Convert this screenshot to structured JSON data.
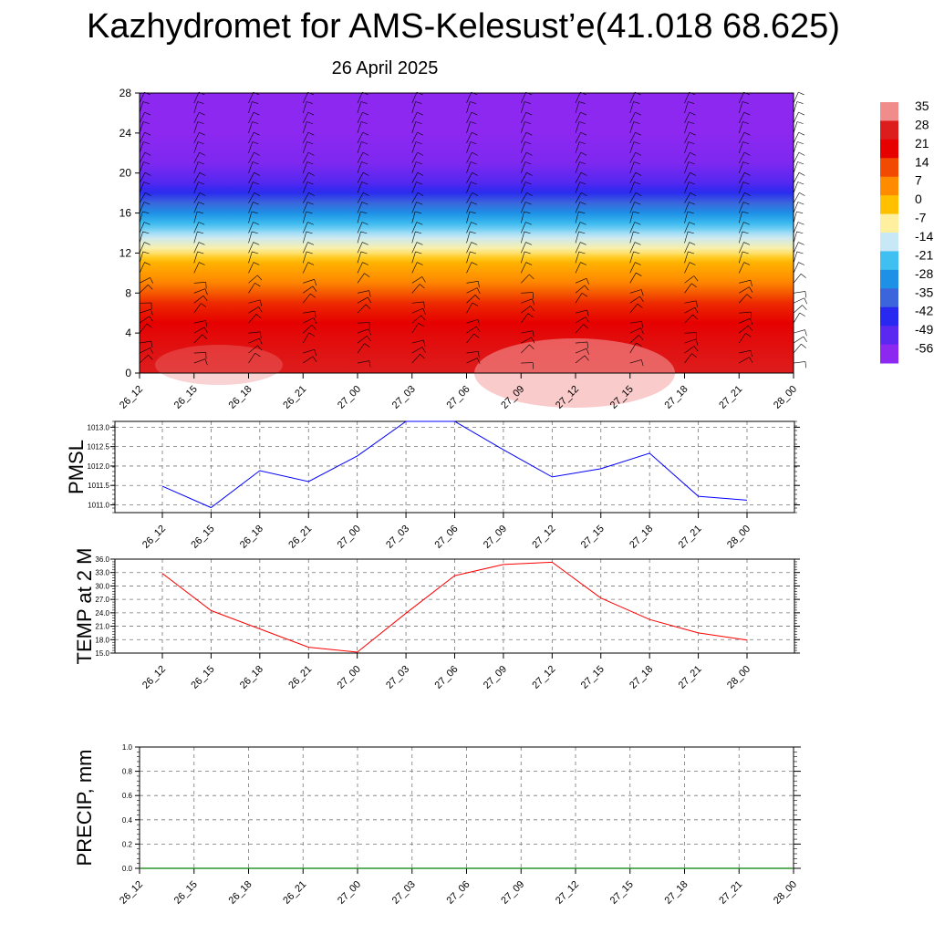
{
  "page": {
    "title": "Kazhydromet for AMS-Kelesust’e(41.018 68.625)",
    "subtitle": "26 April 2025"
  },
  "colors": {
    "pmsl_line": "#0000ff",
    "temp_line": "#ff0000",
    "precip_line": "#008000",
    "grid": "#777777"
  },
  "chart_data": [
    {
      "type": "heatmap",
      "title": "",
      "xlabel": "",
      "ylabel": "",
      "x_ticks": [
        "26_12",
        "26_15",
        "26_18",
        "26_21",
        "27_00",
        "27_03",
        "27_06",
        "27_09",
        "27_12",
        "27_15",
        "27_18",
        "27_21",
        "28_00"
      ],
      "y_ticks": [
        "0",
        "4",
        "8",
        "12",
        "16",
        "20",
        "24",
        "28"
      ],
      "ylim": [
        0,
        28
      ],
      "colorbar_labels": [
        "35",
        "28",
        "21",
        "14",
        "7",
        "0",
        "-7",
        "-14",
        "-21",
        "-28",
        "-35",
        "-42",
        "-49",
        "-56"
      ],
      "colorbar_stops": [
        {
          "v": 35,
          "c": "#f08c8c"
        },
        {
          "v": 28,
          "c": "#dd1d1d"
        },
        {
          "v": 21,
          "c": "#e60000"
        },
        {
          "v": 14,
          "c": "#f24a00"
        },
        {
          "v": 7,
          "c": "#ff8c00"
        },
        {
          "v": 0,
          "c": "#ffc000"
        },
        {
          "v": -7,
          "c": "#fff0a0"
        },
        {
          "v": -14,
          "c": "#c8e8f8"
        },
        {
          "v": -21,
          "c": "#40c0f0"
        },
        {
          "v": -28,
          "c": "#1e90e6"
        },
        {
          "v": -35,
          "c": "#3c64dc"
        },
        {
          "v": -42,
          "c": "#2828f0"
        },
        {
          "v": -49,
          "c": "#5a28f0"
        },
        {
          "v": -56,
          "c": "#8c28f0"
        }
      ],
      "field_profile": [
        {
          "h": 0,
          "v": 28
        },
        {
          "h": 4,
          "v": 23
        },
        {
          "h": 7,
          "v": 17
        },
        {
          "h": 9,
          "v": 8
        },
        {
          "h": 11,
          "v": 2
        },
        {
          "h": 12.5,
          "v": -8
        },
        {
          "h": 14,
          "v": -16
        },
        {
          "h": 16,
          "v": -28
        },
        {
          "h": 17.5,
          "v": -38
        },
        {
          "h": 19,
          "v": -48
        },
        {
          "h": 21,
          "v": -54
        },
        {
          "h": 24,
          "v": -56
        },
        {
          "h": 28,
          "v": -56
        }
      ]
    },
    {
      "type": "line",
      "ylabel": "PMSL",
      "x": [
        "26_12",
        "26_15",
        "26_18",
        "26_21",
        "27_00",
        "27_03",
        "27_06",
        "27_09",
        "27_12",
        "27_15",
        "27_18",
        "27_21",
        "28_00"
      ],
      "y_ticks": [
        "1011.0",
        "1011.5",
        "1012.0",
        "1012.5",
        "1013.0"
      ],
      "ylim": [
        1010.8,
        1013.15
      ],
      "series": [
        {
          "values": [
            1011.48,
            1010.93,
            1011.88,
            1011.6,
            1012.26,
            1013.15,
            1013.15,
            1012.42,
            1011.72,
            1011.93,
            1012.33,
            1011.22,
            1011.12
          ]
        }
      ]
    },
    {
      "type": "line",
      "ylabel": "TEMP at 2 M",
      "x": [
        "26_12",
        "26_15",
        "26_18",
        "26_21",
        "27_00",
        "27_03",
        "27_06",
        "27_09",
        "27_12",
        "27_15",
        "27_18",
        "27_21",
        "28_00"
      ],
      "y_ticks": [
        "15.0",
        "18.0",
        "21.0",
        "24.0",
        "27.0",
        "30.0",
        "33.0",
        "36.0"
      ],
      "ylim": [
        15.0,
        36.0
      ],
      "series": [
        {
          "values": [
            32.8,
            24.5,
            20.4,
            16.3,
            15.2,
            23.9,
            32.3,
            34.8,
            35.3,
            27.3,
            22.5,
            19.5,
            17.9
          ]
        }
      ]
    },
    {
      "type": "line",
      "ylabel": "PRECIP, mm",
      "x": [
        "26_12",
        "26_15",
        "26_18",
        "26_21",
        "27_00",
        "27_03",
        "27_06",
        "27_09",
        "27_12",
        "27_15",
        "27_18",
        "27_21",
        "28_00"
      ],
      "y_ticks": [
        "0.0",
        "0.2",
        "0.4",
        "0.6",
        "0.8",
        "1.0"
      ],
      "ylim": [
        0.0,
        1.0
      ],
      "series": [
        {
          "values": [
            0,
            0,
            0,
            0,
            0,
            0,
            0,
            0,
            0,
            0,
            0,
            0,
            0
          ]
        }
      ]
    }
  ]
}
